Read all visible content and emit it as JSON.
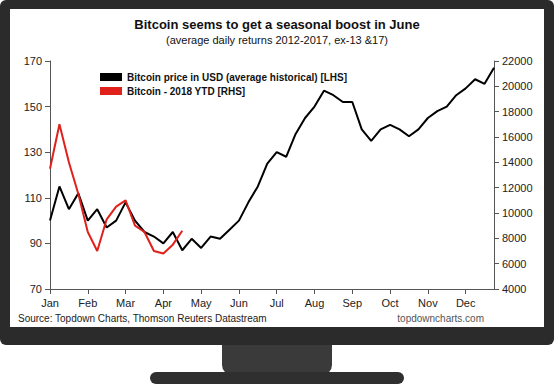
{
  "chart_data": {
    "type": "line",
    "title": "Bitcoin seems to get a seasonal boost in June",
    "subtitle": "(average daily returns 2012-2017, ex-13 &17)",
    "annotations": [
      "Source: Topdown Charts, Thomson Reuters Datastream",
      "topdowncharts.com"
    ],
    "categories": [
      "Jan",
      null,
      null,
      null,
      "Feb",
      null,
      null,
      null,
      "Mar",
      null,
      null,
      null,
      "Apr",
      null,
      null,
      null,
      "May",
      null,
      null,
      null,
      "Jun",
      null,
      null,
      null,
      "Jul",
      null,
      null,
      null,
      "Aug",
      null,
      null,
      null,
      "Sep",
      null,
      null,
      null,
      "Oct",
      null,
      null,
      null,
      "Nov",
      null,
      null,
      null,
      "Dec",
      null,
      null,
      null
    ],
    "series": [
      {
        "name": "Bitcoin price in USD (average historical) [LHS]",
        "color": "#000000",
        "axis": "y",
        "line_style": "solid",
        "values": [
          100,
          115,
          105,
          112,
          100,
          105,
          97,
          100,
          108,
          100,
          95,
          93,
          90,
          95,
          87,
          92,
          88,
          93,
          92,
          96,
          100,
          108,
          115,
          125,
          130,
          128,
          138,
          145,
          150,
          157,
          155,
          152,
          152,
          140,
          135,
          140,
          142,
          140,
          137,
          140,
          145,
          148,
          150,
          155,
          158,
          162,
          160,
          167
        ]
      },
      {
        "name": "Bitcoin - 2018 YTD [RHS]",
        "color": "#e0201b",
        "axis": "y2",
        "line_style": "solid",
        "values": [
          13500,
          17000,
          14000,
          11500,
          8500,
          7000,
          9500,
          10500,
          11000,
          9000,
          8500,
          7000,
          6800,
          7500,
          8600,
          null,
          null,
          null,
          null,
          null,
          null,
          null,
          null,
          null,
          null,
          null,
          null,
          null,
          null,
          null,
          null,
          null,
          null,
          null,
          null,
          null,
          null,
          null,
          null,
          null,
          null,
          null,
          null,
          null,
          null,
          null,
          null,
          null
        ]
      }
    ],
    "ylim": [
      70,
      170
    ],
    "yticks": [
      70,
      90,
      110,
      130,
      150,
      170
    ],
    "y2lim": [
      4000,
      22000
    ],
    "y2ticks": [
      4000,
      6000,
      8000,
      10000,
      12000,
      14000,
      16000,
      18000,
      20000,
      22000
    ],
    "grid": false,
    "legend": "upper left"
  }
}
